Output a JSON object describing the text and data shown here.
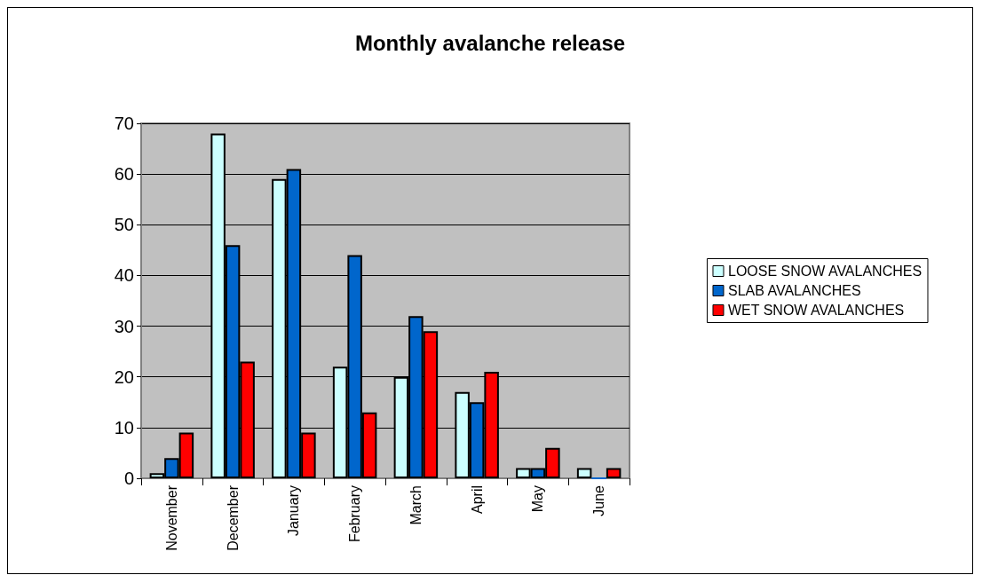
{
  "chart_data": {
    "type": "bar",
    "title": "Monthly avalanche release",
    "categories": [
      "November",
      "December",
      "January",
      "February",
      "March",
      "April",
      "May",
      "June"
    ],
    "series": [
      {
        "name": "LOOSE SNOW AVALANCHES",
        "color": "#ccffff",
        "values": [
          1,
          68,
          59,
          22,
          20,
          17,
          2,
          2
        ]
      },
      {
        "name": "SLAB AVALANCHES",
        "color": "#0066cc",
        "values": [
          4,
          46,
          61,
          44,
          32,
          15,
          2,
          0
        ]
      },
      {
        "name": "WET SNOW AVALANCHES",
        "color": "#ff0000",
        "values": [
          9,
          23,
          9,
          13,
          29,
          21,
          6,
          2
        ]
      }
    ],
    "ylim": [
      0,
      70
    ],
    "yticks": [
      0,
      10,
      20,
      30,
      40,
      50,
      60,
      70
    ],
    "grid": "y",
    "legend": "right"
  }
}
